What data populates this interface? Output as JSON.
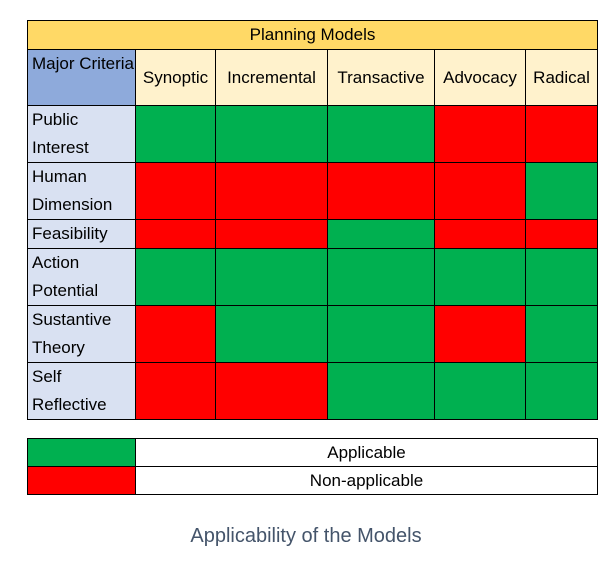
{
  "title": "Planning Models",
  "corner_label": "Major Criteria",
  "models": [
    "Synoptic",
    "Incremental",
    "Transactive",
    "Advocacy",
    "Radical"
  ],
  "criteria": [
    {
      "label": "Public Interest",
      "applicable": [
        true,
        true,
        true,
        false,
        false
      ]
    },
    {
      "label": "Human Dimension",
      "applicable": [
        false,
        false,
        false,
        false,
        true
      ]
    },
    {
      "label": "Feasibility",
      "applicable": [
        false,
        false,
        true,
        false,
        false
      ]
    },
    {
      "label": "Action Potential",
      "applicable": [
        true,
        true,
        true,
        true,
        true
      ]
    },
    {
      "label": "Sustantive Theory",
      "applicable": [
        false,
        true,
        true,
        false,
        true
      ]
    },
    {
      "label": "Self Reflective",
      "applicable": [
        false,
        false,
        true,
        true,
        true
      ]
    }
  ],
  "legend": {
    "applicable": "Applicable",
    "non_applicable": "Non-applicable"
  },
  "caption": "Applicability of the Models",
  "colors": {
    "applicable": "#00b050",
    "non_applicable": "#ff0000",
    "title_bg": "#ffd966",
    "model_bg": "#fff2cc",
    "corner_bg": "#8eaadb",
    "criterion_bg": "#d9e1f2",
    "caption": "#44546a"
  }
}
